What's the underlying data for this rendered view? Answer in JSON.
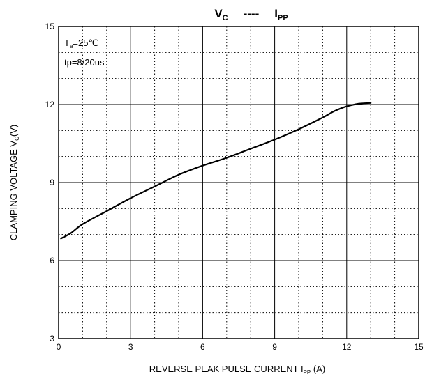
{
  "chart_data": {
    "type": "line",
    "title": {
      "main": "V",
      "main_sub": "C",
      "sep": "----",
      "right": "I",
      "right_sub": "PP"
    },
    "xlabel": {
      "text": "REVERSE PEAK PULSE CURRENT  I",
      "sub": "PP",
      "unit": " (A)"
    },
    "ylabel": {
      "text": "CLAMPING VOLTAGE  V",
      "sub": "C",
      "unit": "(V)"
    },
    "xlim": [
      0,
      15
    ],
    "ylim": [
      3,
      15
    ],
    "x_ticks": [
      0,
      3,
      6,
      9,
      12,
      15
    ],
    "y_ticks": [
      3,
      6,
      9,
      12,
      15
    ],
    "x_tick_labels": [
      "0",
      "3",
      "6",
      "9",
      "12",
      "15"
    ],
    "y_tick_labels": [
      "3",
      "6",
      "9",
      "12",
      "15"
    ],
    "grid": {
      "major_x": [
        3,
        6,
        9,
        12
      ],
      "major_y": [
        6,
        9,
        12
      ],
      "minor_x": [
        1,
        2,
        4,
        5,
        7,
        8,
        10,
        11,
        13,
        14
      ],
      "minor_y": [
        4,
        5,
        7,
        8,
        10,
        11,
        13,
        14
      ]
    },
    "annotations": {
      "temp_prefix": "T",
      "temp_sub": "a",
      "temp_value": "=25℃",
      "pulse": "tp=8/20us"
    },
    "series": [
      {
        "x": [
          0.1,
          0.5,
          1,
          2,
          3,
          4,
          5,
          6,
          7,
          8,
          9,
          10,
          11,
          11.5,
          12,
          12.5,
          13
        ],
        "y": [
          6.85,
          7.05,
          7.4,
          7.9,
          8.4,
          8.85,
          9.3,
          9.65,
          9.95,
          10.3,
          10.65,
          11.05,
          11.5,
          11.75,
          11.93,
          12.03,
          12.06
        ]
      }
    ]
  }
}
